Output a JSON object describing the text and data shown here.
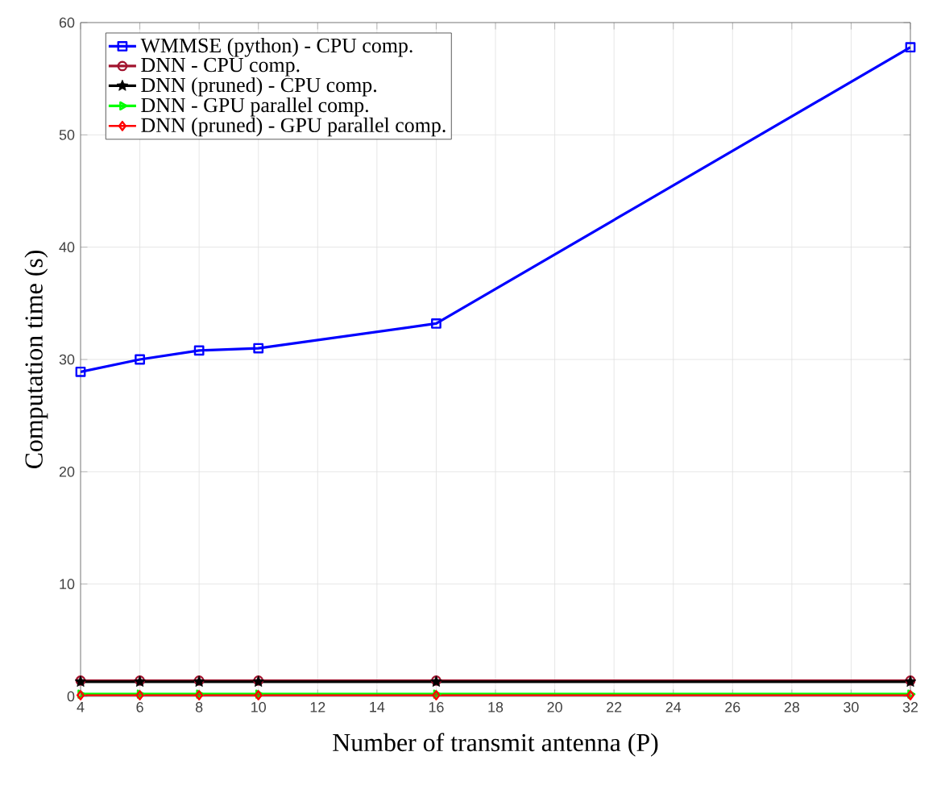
{
  "chart_data": {
    "type": "line",
    "xlabel": "Number of transmit antenna (P)",
    "ylabel": "Computation time (s)",
    "x": [
      4,
      6,
      8,
      10,
      16,
      32
    ],
    "series": [
      {
        "name": "WMMSE (python) - CPU comp.",
        "color": "#0000ff",
        "marker": "square",
        "values": [
          28.9,
          30.0,
          30.8,
          31.0,
          33.2,
          57.8
        ]
      },
      {
        "name": "DNN - CPU comp.",
        "color": "#a2142f",
        "marker": "circle",
        "values": [
          1.4,
          1.4,
          1.4,
          1.4,
          1.4,
          1.4
        ]
      },
      {
        "name": "DNN (pruned) - CPU comp.",
        "color": "#000000",
        "marker": "star",
        "values": [
          1.3,
          1.3,
          1.3,
          1.3,
          1.3,
          1.3
        ]
      },
      {
        "name": "DNN - GPU parallel comp.",
        "color": "#00ff00",
        "marker": "triangle",
        "values": [
          0.2,
          0.2,
          0.2,
          0.2,
          0.2,
          0.2
        ]
      },
      {
        "name": "DNN (pruned) - GPU parallel comp.",
        "color": "#ff0000",
        "marker": "diamond",
        "values": [
          0.1,
          0.1,
          0.1,
          0.1,
          0.1,
          0.1
        ]
      }
    ],
    "xlim": [
      4,
      32
    ],
    "xticks": [
      4,
      6,
      8,
      10,
      12,
      14,
      16,
      18,
      20,
      22,
      24,
      26,
      28,
      30,
      32
    ],
    "ylim": [
      0,
      60
    ],
    "yticks": [
      0,
      10,
      20,
      30,
      40,
      50,
      60
    ],
    "grid": true,
    "legend": "top left",
    "line_style": "solid"
  }
}
